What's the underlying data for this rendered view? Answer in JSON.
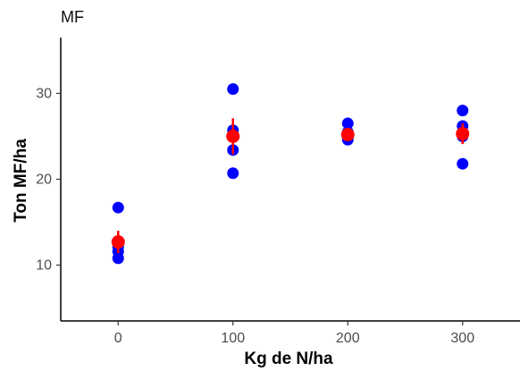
{
  "chart_data": {
    "type": "scatter",
    "title": "MF",
    "xlabel": "Kg de N/ha",
    "ylabel": "Ton MF/ha",
    "xlim": [
      -50,
      350
    ],
    "ylim": [
      3.5,
      36.5
    ],
    "xticks": [
      0,
      100,
      200,
      300
    ],
    "yticks": [
      10,
      20,
      30
    ],
    "grid": false,
    "series": [
      {
        "color": "#0000ff",
        "points": [
          {
            "x": 0,
            "y": 16.7
          },
          {
            "x": 0,
            "y": 12.1
          },
          {
            "x": 0,
            "y": 11.6
          },
          {
            "x": 0,
            "y": 10.8
          },
          {
            "x": 100,
            "y": 30.5
          },
          {
            "x": 100,
            "y": 25.7
          },
          {
            "x": 100,
            "y": 25.2
          },
          {
            "x": 100,
            "y": 23.4
          },
          {
            "x": 100,
            "y": 20.7
          },
          {
            "x": 200,
            "y": 26.5
          },
          {
            "x": 200,
            "y": 25.5
          },
          {
            "x": 200,
            "y": 25.0
          },
          {
            "x": 200,
            "y": 24.6
          },
          {
            "x": 300,
            "y": 28.0
          },
          {
            "x": 300,
            "y": 26.2
          },
          {
            "x": 300,
            "y": 25.0
          },
          {
            "x": 300,
            "y": 21.8
          }
        ]
      },
      {
        "color": "#ff0000",
        "points": [
          {
            "x": 0,
            "y": 12.7,
            "ymin": 11.4,
            "ymax": 14.0
          },
          {
            "x": 100,
            "y": 25.0,
            "ymin": 22.9,
            "ymax": 27.1
          },
          {
            "x": 200,
            "y": 25.2,
            "ymin": 24.7,
            "ymax": 25.7
          },
          {
            "x": 300,
            "y": 25.3,
            "ymin": 24.1,
            "ymax": 26.5
          }
        ]
      }
    ]
  }
}
